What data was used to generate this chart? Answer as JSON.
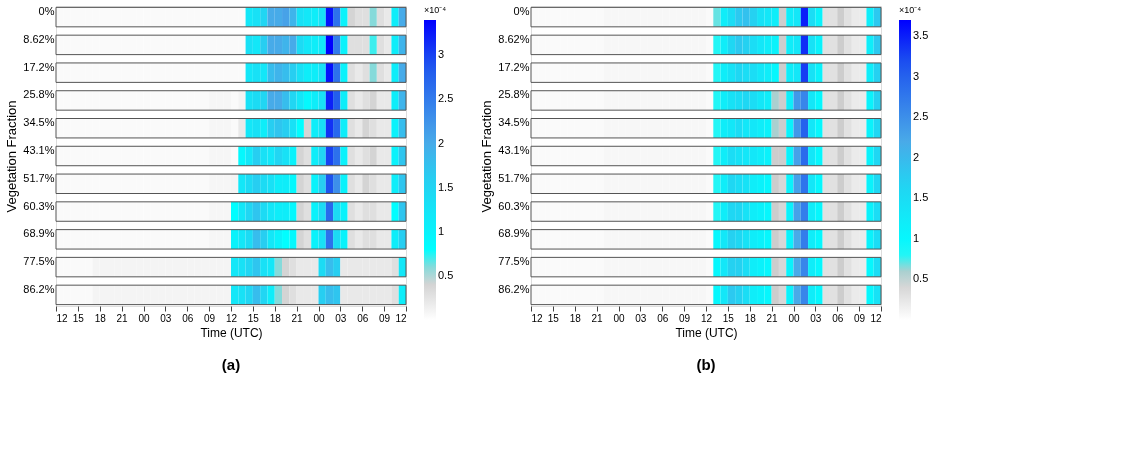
{
  "chart_data": [
    {
      "type": "heatmap",
      "title": "(a)",
      "xlabel": "Time (UTC)",
      "ylabel": "Vegetation Fraction",
      "clabel": "×10⁻⁴",
      "grid": false,
      "x": [
        12.5,
        13.5,
        14.5,
        15.5,
        16.5,
        17.5,
        18.5,
        19.5,
        20.5,
        21.5,
        22.5,
        23.5,
        24.5,
        25.5,
        26.5,
        27.5,
        28.5,
        29.5,
        30.5,
        31.5,
        32.5,
        33.5,
        34.5,
        35.5,
        36.5,
        37.5,
        38.5,
        39.5,
        40.5,
        41.5,
        42.5,
        43.5,
        44.5,
        45.5,
        46.5,
        47.5,
        48.5,
        49.5,
        50.5,
        51.5,
        52.5,
        53.5,
        54.5,
        55.5,
        56.5,
        57.5,
        58.5,
        59.5
      ],
      "xlim": [
        12,
        60
      ],
      "xticks": [
        12,
        15,
        18,
        21,
        {
          "value": 24,
          "label": "00"
        },
        {
          "value": 27,
          "label": "03"
        },
        {
          "value": 30,
          "label": "06"
        },
        {
          "value": 33,
          "label": "09"
        },
        {
          "value": 36,
          "label": "12"
        },
        {
          "value": 39,
          "label": "15"
        },
        {
          "value": 42,
          "label": "18"
        },
        {
          "value": 45,
          "label": "21"
        },
        {
          "value": 48,
          "label": "00"
        },
        {
          "value": 51,
          "label": "03"
        },
        {
          "value": 54,
          "label": "06"
        },
        {
          "value": 57,
          "label": "09"
        },
        {
          "value": 60,
          "label": "12"
        }
      ],
      "y_categories": [
        "0%",
        "8.62%",
        "17.2%",
        "25.8%",
        "34.5%",
        "43.1%",
        "51.7%",
        "60.3%",
        "68.9%",
        "77.5%",
        "86.2%"
      ],
      "clim": [
        0,
        3.4
      ],
      "cticks": [
        0.5,
        1,
        1.5,
        2,
        2.5,
        3
      ],
      "cells": [
        [
          0.05,
          0.05,
          0.05,
          0.05,
          0.05,
          0.05,
          0.05,
          0.05,
          0.05,
          0.05,
          0.05,
          0.05,
          0.05,
          0.05,
          0.05,
          0.05,
          0.05,
          0.05,
          0.05,
          0.05,
          0.05,
          0.05,
          0.05,
          0.05,
          0.05,
          0.05,
          1.2,
          1.3,
          1.5,
          2.0,
          2.0,
          2.1,
          1.9,
          1.3,
          1.2,
          1.1,
          1.3,
          3.3,
          2.6,
          1.0,
          0.4,
          0.3,
          0.3,
          0.6,
          0.3,
          0.2,
          1.1,
          2.0
        ],
        [
          0.05,
          0.05,
          0.05,
          0.05,
          0.05,
          0.05,
          0.05,
          0.05,
          0.05,
          0.05,
          0.05,
          0.05,
          0.05,
          0.05,
          0.05,
          0.05,
          0.05,
          0.05,
          0.05,
          0.05,
          0.05,
          0.05,
          0.05,
          0.05,
          0.05,
          0.05,
          1.3,
          1.2,
          1.6,
          2.0,
          2.0,
          1.9,
          2.0,
          1.4,
          1.2,
          1.1,
          1.2,
          3.4,
          2.5,
          1.0,
          0.3,
          0.3,
          0.3,
          0.7,
          0.3,
          0.2,
          1.1,
          1.9
        ],
        [
          0.05,
          0.05,
          0.05,
          0.05,
          0.05,
          0.05,
          0.05,
          0.05,
          0.05,
          0.05,
          0.05,
          0.05,
          0.05,
          0.05,
          0.05,
          0.05,
          0.05,
          0.05,
          0.05,
          0.05,
          0.05,
          0.05,
          0.05,
          0.05,
          0.05,
          0.05,
          1.2,
          1.3,
          1.2,
          1.8,
          1.9,
          1.8,
          1.6,
          1.3,
          1.1,
          1.1,
          1.3,
          3.3,
          2.6,
          1.0,
          0.3,
          0.2,
          0.3,
          0.6,
          0.3,
          0.2,
          1.1,
          2.0
        ],
        [
          0.05,
          0.05,
          0.05,
          0.05,
          0.05,
          0.05,
          0.05,
          0.05,
          0.05,
          0.05,
          0.05,
          0.05,
          0.05,
          0.05,
          0.05,
          0.05,
          0.05,
          0.05,
          0.05,
          0.05,
          0.05,
          0.08,
          0.08,
          0.08,
          0.05,
          0.1,
          1.3,
          1.4,
          1.5,
          2.0,
          2.0,
          1.8,
          1.5,
          1.2,
          0.9,
          1.1,
          1.3,
          3.2,
          2.8,
          1.1,
          0.3,
          0.2,
          0.3,
          0.4,
          0.2,
          0.2,
          1.1,
          1.9
        ],
        [
          0.05,
          0.05,
          0.05,
          0.05,
          0.05,
          0.05,
          0.05,
          0.05,
          0.05,
          0.05,
          0.05,
          0.05,
          0.05,
          0.05,
          0.05,
          0.05,
          0.05,
          0.05,
          0.05,
          0.05,
          0.05,
          0.08,
          0.08,
          0.08,
          0.05,
          0.2,
          1.2,
          1.3,
          1.1,
          1.6,
          1.7,
          1.6,
          1.3,
          0.8,
          0.4,
          1.1,
          1.3,
          3.1,
          2.7,
          1.1,
          0.3,
          0.2,
          0.4,
          0.3,
          0.2,
          0.2,
          1.0,
          1.8
        ],
        [
          0.05,
          0.05,
          0.05,
          0.05,
          0.05,
          0.05,
          0.05,
          0.05,
          0.05,
          0.05,
          0.05,
          0.05,
          0.05,
          0.05,
          0.05,
          0.05,
          0.05,
          0.05,
          0.05,
          0.05,
          0.05,
          0.08,
          0.08,
          0.08,
          0.05,
          0.9,
          1.2,
          1.6,
          1.3,
          1.2,
          1.5,
          1.3,
          1.0,
          0.4,
          0.3,
          1.1,
          1.5,
          3.0,
          2.6,
          1.0,
          0.3,
          0.2,
          0.3,
          0.4,
          0.2,
          0.2,
          1.0,
          1.7
        ],
        [
          0.05,
          0.05,
          0.05,
          0.05,
          0.05,
          0.05,
          0.05,
          0.05,
          0.05,
          0.05,
          0.05,
          0.05,
          0.05,
          0.05,
          0.05,
          0.05,
          0.05,
          0.05,
          0.05,
          0.05,
          0.05,
          0.08,
          0.08,
          0.08,
          0.1,
          1.2,
          1.4,
          1.6,
          1.4,
          1.3,
          1.1,
          1.1,
          0.9,
          0.4,
          0.3,
          1.0,
          1.6,
          2.9,
          2.3,
          1.0,
          0.3,
          0.2,
          0.4,
          0.3,
          0.2,
          0.2,
          1.1,
          1.7
        ],
        [
          0.05,
          0.05,
          0.05,
          0.05,
          0.05,
          0.05,
          0.05,
          0.05,
          0.05,
          0.05,
          0.05,
          0.05,
          0.05,
          0.05,
          0.05,
          0.05,
          0.05,
          0.05,
          0.05,
          0.05,
          0.05,
          0.08,
          0.08,
          0.08,
          0.8,
          1.2,
          1.5,
          1.7,
          1.4,
          1.2,
          1.1,
          1.1,
          0.9,
          0.4,
          0.3,
          1.0,
          1.4,
          2.7,
          1.4,
          1.0,
          0.3,
          0.2,
          0.3,
          0.3,
          0.2,
          0.2,
          0.8,
          1.7
        ],
        [
          0.05,
          0.05,
          0.05,
          0.05,
          0.05,
          0.05,
          0.05,
          0.05,
          0.05,
          0.05,
          0.05,
          0.05,
          0.05,
          0.05,
          0.05,
          0.05,
          0.05,
          0.05,
          0.05,
          0.05,
          0.05,
          0.08,
          0.08,
          0.08,
          1.0,
          1.2,
          1.4,
          1.8,
          1.6,
          1.2,
          1.0,
          0.8,
          0.9,
          0.4,
          0.3,
          1.0,
          1.3,
          2.6,
          1.4,
          1.0,
          0.3,
          0.2,
          0.3,
          0.3,
          0.2,
          0.2,
          1.1,
          1.6
        ],
        [
          0.05,
          0.05,
          0.05,
          0.05,
          0.05,
          0.1,
          0.1,
          0.1,
          0.1,
          0.1,
          0.1,
          0.1,
          0.1,
          0.1,
          0.1,
          0.1,
          0.1,
          0.1,
          0.1,
          0.1,
          0.1,
          0.1,
          0.1,
          0.1,
          1.2,
          1.3,
          1.5,
          1.7,
          1.3,
          1.2,
          0.6,
          0.4,
          0.3,
          0.2,
          0.2,
          0.2,
          1.4,
          1.8,
          1.6,
          0.2,
          0.2,
          0.2,
          0.2,
          0.2,
          0.2,
          0.2,
          0.3,
          1.2
        ],
        [
          0.05,
          0.05,
          0.05,
          0.05,
          0.05,
          0.1,
          0.1,
          0.1,
          0.1,
          0.1,
          0.1,
          0.1,
          0.1,
          0.1,
          0.1,
          0.1,
          0.1,
          0.1,
          0.1,
          0.1,
          0.1,
          0.1,
          0.1,
          0.1,
          1.2,
          1.3,
          1.5,
          1.8,
          1.5,
          1.1,
          0.6,
          0.4,
          0.3,
          0.2,
          0.2,
          0.2,
          1.6,
          1.8,
          1.7,
          0.2,
          0.2,
          0.2,
          0.2,
          0.2,
          0.2,
          0.2,
          0.3,
          1.1
        ]
      ]
    },
    {
      "type": "heatmap",
      "title": "(b)",
      "xlabel": "Time (UTC)",
      "ylabel": "Vegetation Fraction",
      "clabel": "×10⁻⁴",
      "grid": false,
      "x": [
        12.5,
        13.5,
        14.5,
        15.5,
        16.5,
        17.5,
        18.5,
        19.5,
        20.5,
        21.5,
        22.5,
        23.5,
        24.5,
        25.5,
        26.5,
        27.5,
        28.5,
        29.5,
        30.5,
        31.5,
        32.5,
        33.5,
        34.5,
        35.5,
        36.5,
        37.5,
        38.5,
        39.5,
        40.5,
        41.5,
        42.5,
        43.5,
        44.5,
        45.5,
        46.5,
        47.5,
        48.5,
        49.5,
        50.5,
        51.5,
        52.5,
        53.5,
        54.5,
        55.5,
        56.5,
        57.5,
        58.5,
        59.5
      ],
      "xlim": [
        12,
        60
      ],
      "xticks": [
        12,
        15,
        18,
        21,
        {
          "value": 24,
          "label": "00"
        },
        {
          "value": 27,
          "label": "03"
        },
        {
          "value": 30,
          "label": "06"
        },
        {
          "value": 33,
          "label": "09"
        },
        {
          "value": 36,
          "label": "12"
        },
        {
          "value": 39,
          "label": "15"
        },
        {
          "value": 42,
          "label": "18"
        },
        {
          "value": 45,
          "label": "21"
        },
        {
          "value": 48,
          "label": "00"
        },
        {
          "value": 51,
          "label": "03"
        },
        {
          "value": 54,
          "label": "06"
        },
        {
          "value": 57,
          "label": "09"
        },
        {
          "value": 60,
          "label": "12"
        }
      ],
      "y_categories": [
        "0%",
        "8.62%",
        "17.2%",
        "25.8%",
        "34.5%",
        "43.1%",
        "51.7%",
        "60.3%",
        "68.9%",
        "77.5%",
        "86.2%"
      ],
      "clim": [
        0,
        3.7
      ],
      "cticks": [
        0.5,
        1,
        1.5,
        2,
        2.5,
        3,
        3.5
      ],
      "cells": [
        [
          0.05,
          0.05,
          0.05,
          0.05,
          0.05,
          0.05,
          0.05,
          0.05,
          0.05,
          0.05,
          0.08,
          0.08,
          0.08,
          0.08,
          0.08,
          0.08,
          0.08,
          0.08,
          0.08,
          0.08,
          0.08,
          0.08,
          0.08,
          0.08,
          0.05,
          0.7,
          1.2,
          1.5,
          1.8,
          1.9,
          1.7,
          1.4,
          1.3,
          1.2,
          0.5,
          1.2,
          1.3,
          3.5,
          1.5,
          1.1,
          0.3,
          0.3,
          0.5,
          0.3,
          0.2,
          0.2,
          1.2,
          1.8
        ],
        [
          0.05,
          0.05,
          0.05,
          0.05,
          0.05,
          0.05,
          0.05,
          0.05,
          0.05,
          0.05,
          0.08,
          0.08,
          0.08,
          0.08,
          0.08,
          0.08,
          0.08,
          0.08,
          0.08,
          0.08,
          0.08,
          0.08,
          0.08,
          0.08,
          0.05,
          0.8,
          1.2,
          1.6,
          1.8,
          1.7,
          1.5,
          1.3,
          1.2,
          1.1,
          0.5,
          1.2,
          1.3,
          3.4,
          1.4,
          1.1,
          0.3,
          0.3,
          0.5,
          0.3,
          0.2,
          0.2,
          1.2,
          1.8
        ],
        [
          0.05,
          0.05,
          0.05,
          0.05,
          0.05,
          0.05,
          0.05,
          0.05,
          0.05,
          0.05,
          0.08,
          0.08,
          0.08,
          0.08,
          0.08,
          0.08,
          0.08,
          0.08,
          0.08,
          0.08,
          0.08,
          0.08,
          0.08,
          0.08,
          0.05,
          0.8,
          1.2,
          1.4,
          1.6,
          1.5,
          1.5,
          1.3,
          1.2,
          1.0,
          0.5,
          1.2,
          1.3,
          3.3,
          1.4,
          1.1,
          0.3,
          0.3,
          0.5,
          0.3,
          0.2,
          0.2,
          1.2,
          1.7
        ],
        [
          0.05,
          0.05,
          0.05,
          0.05,
          0.05,
          0.05,
          0.05,
          0.05,
          0.05,
          0.05,
          0.08,
          0.08,
          0.08,
          0.08,
          0.08,
          0.08,
          0.08,
          0.08,
          0.08,
          0.08,
          0.08,
          0.08,
          0.08,
          0.08,
          0.05,
          0.8,
          1.2,
          1.4,
          1.5,
          1.6,
          1.5,
          1.3,
          1.2,
          0.6,
          0.5,
          1.2,
          2.4,
          2.6,
          1.3,
          1.0,
          0.3,
          0.3,
          0.5,
          0.3,
          0.2,
          0.2,
          1.1,
          1.7
        ],
        [
          0.05,
          0.05,
          0.05,
          0.05,
          0.05,
          0.05,
          0.05,
          0.05,
          0.05,
          0.05,
          0.08,
          0.08,
          0.08,
          0.08,
          0.08,
          0.08,
          0.08,
          0.08,
          0.08,
          0.08,
          0.08,
          0.08,
          0.08,
          0.08,
          0.05,
          0.8,
          1.2,
          1.3,
          1.5,
          1.3,
          1.3,
          1.2,
          1.1,
          0.6,
          0.5,
          1.1,
          2.4,
          3.0,
          1.3,
          1.0,
          0.3,
          0.3,
          0.5,
          0.3,
          0.2,
          0.2,
          1.1,
          1.6
        ],
        [
          0.05,
          0.05,
          0.05,
          0.05,
          0.05,
          0.05,
          0.05,
          0.05,
          0.05,
          0.05,
          0.08,
          0.08,
          0.08,
          0.08,
          0.08,
          0.08,
          0.08,
          0.08,
          0.08,
          0.08,
          0.08,
          0.08,
          0.08,
          0.08,
          0.05,
          0.8,
          1.2,
          1.5,
          1.4,
          1.3,
          1.3,
          1.2,
          1.1,
          0.5,
          0.5,
          1.1,
          2.3,
          2.9,
          1.3,
          1.0,
          0.3,
          0.3,
          0.5,
          0.3,
          0.2,
          0.2,
          1.1,
          1.6
        ],
        [
          0.05,
          0.05,
          0.05,
          0.05,
          0.05,
          0.05,
          0.05,
          0.05,
          0.05,
          0.05,
          0.08,
          0.08,
          0.08,
          0.08,
          0.08,
          0.08,
          0.08,
          0.08,
          0.08,
          0.08,
          0.08,
          0.08,
          0.08,
          0.08,
          0.05,
          0.8,
          1.2,
          1.6,
          1.5,
          1.4,
          1.2,
          1.1,
          1.0,
          0.5,
          0.4,
          1.1,
          2.3,
          2.8,
          1.3,
          1.0,
          0.3,
          0.3,
          0.5,
          0.3,
          0.2,
          0.2,
          1.1,
          1.6
        ],
        [
          0.05,
          0.05,
          0.05,
          0.05,
          0.05,
          0.05,
          0.05,
          0.05,
          0.05,
          0.05,
          0.08,
          0.08,
          0.08,
          0.08,
          0.08,
          0.08,
          0.08,
          0.08,
          0.08,
          0.08,
          0.08,
          0.08,
          0.08,
          0.08,
          0.05,
          0.8,
          1.2,
          1.6,
          1.6,
          1.4,
          1.2,
          1.1,
          1.0,
          0.5,
          0.4,
          1.1,
          2.3,
          2.7,
          1.2,
          1.0,
          0.3,
          0.3,
          0.5,
          0.3,
          0.2,
          0.2,
          1.1,
          1.5
        ],
        [
          0.05,
          0.05,
          0.05,
          0.05,
          0.05,
          0.05,
          0.05,
          0.05,
          0.05,
          0.05,
          0.08,
          0.08,
          0.08,
          0.08,
          0.08,
          0.08,
          0.08,
          0.08,
          0.08,
          0.08,
          0.08,
          0.08,
          0.08,
          0.08,
          0.05,
          1.0,
          1.3,
          1.7,
          1.6,
          1.4,
          1.2,
          1.1,
          1.0,
          0.5,
          0.4,
          1.1,
          2.2,
          2.7,
          1.2,
          1.0,
          0.3,
          0.3,
          0.5,
          0.3,
          0.2,
          0.2,
          1.1,
          1.5
        ],
        [
          0.05,
          0.05,
          0.05,
          0.05,
          0.05,
          0.05,
          0.05,
          0.05,
          0.05,
          0.05,
          0.08,
          0.08,
          0.08,
          0.08,
          0.08,
          0.08,
          0.08,
          0.08,
          0.08,
          0.08,
          0.08,
          0.08,
          0.08,
          0.08,
          0.05,
          1.0,
          1.3,
          1.7,
          1.7,
          1.5,
          1.2,
          1.1,
          1.0,
          0.5,
          0.4,
          1.1,
          2.2,
          2.6,
          1.2,
          1.0,
          0.3,
          0.3,
          0.5,
          0.3,
          0.2,
          0.2,
          1.0,
          1.5
        ],
        [
          0.05,
          0.05,
          0.05,
          0.05,
          0.05,
          0.05,
          0.05,
          0.05,
          0.05,
          0.05,
          0.08,
          0.08,
          0.08,
          0.08,
          0.08,
          0.08,
          0.08,
          0.08,
          0.08,
          0.08,
          0.08,
          0.08,
          0.08,
          0.08,
          0.05,
          1.0,
          1.3,
          1.8,
          1.7,
          1.5,
          1.2,
          1.1,
          1.0,
          0.5,
          0.4,
          1.1,
          2.2,
          2.6,
          1.2,
          1.0,
          0.3,
          0.3,
          0.5,
          0.3,
          0.2,
          0.2,
          1.0,
          1.4
        ]
      ]
    }
  ]
}
